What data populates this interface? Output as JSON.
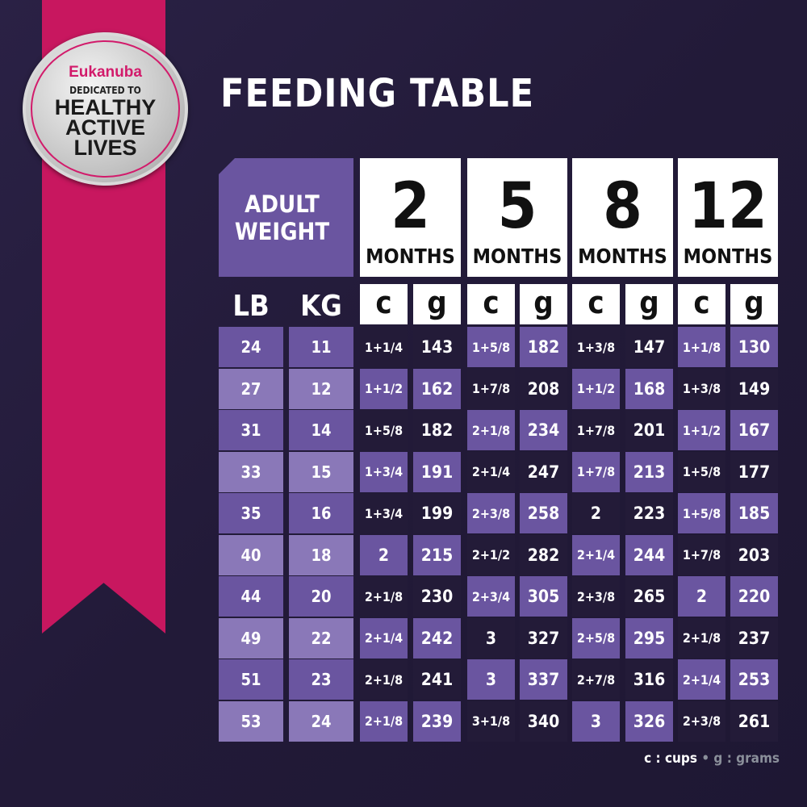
{
  "badge": {
    "brand": "Eukanuba",
    "line1": "DEDICATED TO",
    "line2": "HEALTHY",
    "line3": "ACTIVE",
    "line4": "LIVES"
  },
  "title": "FEEDING TABLE",
  "weight_header": "ADULT WEIGHT",
  "units": {
    "lb": "LB",
    "kg": "KG",
    "c": "c",
    "g": "g"
  },
  "ages": [
    {
      "n": "2",
      "label": "MONTHS"
    },
    {
      "n": "5",
      "label": "MONTHS"
    },
    {
      "n": "8",
      "label": "MONTHS"
    },
    {
      "n": "12",
      "label": "MONTHS"
    }
  ],
  "rows": [
    {
      "lb": "24",
      "kg": "11",
      "v": [
        [
          "1+1/4",
          "143"
        ],
        [
          "1+5/8",
          "182"
        ],
        [
          "1+3/8",
          "147"
        ],
        [
          "1+1/8",
          "130"
        ]
      ]
    },
    {
      "lb": "27",
      "kg": "12",
      "v": [
        [
          "1+1/2",
          "162"
        ],
        [
          "1+7/8",
          "208"
        ],
        [
          "1+1/2",
          "168"
        ],
        [
          "1+3/8",
          "149"
        ]
      ]
    },
    {
      "lb": "31",
      "kg": "14",
      "v": [
        [
          "1+5/8",
          "182"
        ],
        [
          "2+1/8",
          "234"
        ],
        [
          "1+7/8",
          "201"
        ],
        [
          "1+1/2",
          "167"
        ]
      ]
    },
    {
      "lb": "33",
      "kg": "15",
      "v": [
        [
          "1+3/4",
          "191"
        ],
        [
          "2+1/4",
          "247"
        ],
        [
          "1+7/8",
          "213"
        ],
        [
          "1+5/8",
          "177"
        ]
      ]
    },
    {
      "lb": "35",
      "kg": "16",
      "v": [
        [
          "1+3/4",
          "199"
        ],
        [
          "2+3/8",
          "258"
        ],
        [
          "2",
          "223"
        ],
        [
          "1+5/8",
          "185"
        ]
      ]
    },
    {
      "lb": "40",
      "kg": "18",
      "v": [
        [
          "2",
          "215"
        ],
        [
          "2+1/2",
          "282"
        ],
        [
          "2+1/4",
          "244"
        ],
        [
          "1+7/8",
          "203"
        ]
      ]
    },
    {
      "lb": "44",
      "kg": "20",
      "v": [
        [
          "2+1/8",
          "230"
        ],
        [
          "2+3/4",
          "305"
        ],
        [
          "2+3/8",
          "265"
        ],
        [
          "2",
          "220"
        ]
      ]
    },
    {
      "lb": "49",
      "kg": "22",
      "v": [
        [
          "2+1/4",
          "242"
        ],
        [
          "3",
          "327"
        ],
        [
          "2+5/8",
          "295"
        ],
        [
          "2+1/8",
          "237"
        ]
      ]
    },
    {
      "lb": "51",
      "kg": "23",
      "v": [
        [
          "2+1/8",
          "241"
        ],
        [
          "3",
          "337"
        ],
        [
          "2+7/8",
          "316"
        ],
        [
          "2+1/4",
          "253"
        ]
      ]
    },
    {
      "lb": "53",
      "kg": "24",
      "v": [
        [
          "2+1/8",
          "239"
        ],
        [
          "3+1/8",
          "340"
        ],
        [
          "3",
          "326"
        ],
        [
          "2+3/8",
          "261"
        ]
      ]
    }
  ],
  "legend": {
    "c": "c : cups",
    "sep": "•",
    "g": "g : grams"
  },
  "colors": {
    "bg": "#251c3d",
    "ribbon": "#c8175f",
    "purple": "#6a55a0",
    "purple_light": "#8a78b8",
    "dark": "#231b38"
  }
}
